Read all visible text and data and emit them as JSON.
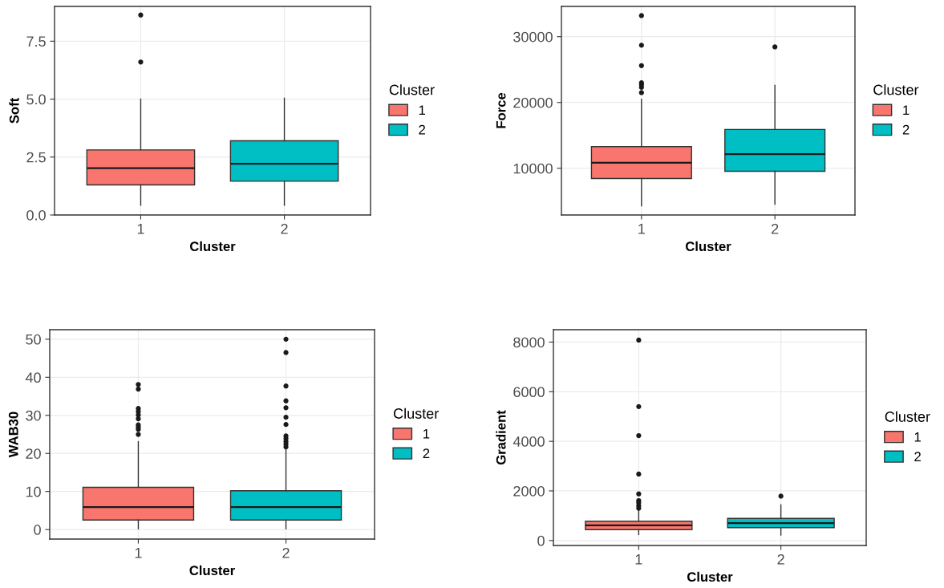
{
  "chart_data": [
    {
      "type": "box",
      "xlabel": "Cluster",
      "ylabel": "Soft",
      "legend_title": "Cluster",
      "legend": "right",
      "grid": true,
      "categories": [
        "1",
        "2"
      ],
      "ylim": [
        0,
        9.0
      ],
      "yticks": [
        {
          "value": 0,
          "label": "0.0"
        },
        2.5,
        {
          "value": 5,
          "label": "5.0"
        },
        7.5
      ],
      "series": [
        {
          "name": "1",
          "color": "#f8766d",
          "boxes": [
            {
              "low": 0.42,
              "q1": 1.3,
              "median": 2.02,
              "q3": 2.81,
              "high": 5.0,
              "outliers": [
                8.63,
                6.6
              ]
            },
            null
          ]
        },
        {
          "name": "2",
          "color": "#00bfc4",
          "boxes": [
            null,
            {
              "low": 0.42,
              "q1": 1.46,
              "median": 2.21,
              "q3": 3.2,
              "high": 5.04
            }
          ]
        }
      ]
    },
    {
      "type": "box",
      "xlabel": "Cluster",
      "ylabel": "Force",
      "legend_title": "Cluster",
      "legend": "right",
      "grid": true,
      "categories": [
        "1",
        "2"
      ],
      "ylim": [
        2900,
        34600
      ],
      "yticks": [
        10000,
        20000,
        30000
      ],
      "series": [
        {
          "name": "1",
          "color": "#f8766d",
          "boxes": [
            {
              "low": 4300,
              "q1": 8450,
              "median": 10850,
              "q3": 13300,
              "high": 20500,
              "outliers": [
                33200,
                28700,
                25600,
                23000,
                22700,
                22300,
                21500
              ]
            },
            null
          ]
        },
        {
          "name": "2",
          "color": "#00bfc4",
          "boxes": [
            null,
            {
              "low": 4550,
              "q1": 9550,
              "median": 12150,
              "q3": 15900,
              "high": 22600,
              "outliers": [
                28450
              ]
            }
          ]
        }
      ]
    },
    {
      "type": "box",
      "xlabel": "Cluster",
      "ylabel": "WAB30",
      "legend_title": "Cluster",
      "legend": "right",
      "grid": true,
      "categories": [
        "1",
        "2"
      ],
      "ylim": [
        -2.5,
        52.5
      ],
      "yticks": [
        0,
        10,
        20,
        30,
        40,
        50
      ],
      "series": [
        {
          "name": "1",
          "color": "#f8766d",
          "boxes": [
            {
              "low": 0.2,
              "q1": 2.5,
              "median": 5.9,
              "q3": 11.1,
              "high": 23.1,
              "outliers": [
                38.1,
                36.9,
                31.8,
                31.0,
                30.1,
                29.1,
                27.5,
                26.9,
                26.3,
                25.0
              ]
            },
            null
          ]
        },
        {
          "name": "2",
          "color": "#00bfc4",
          "boxes": [
            null,
            {
              "low": 0.2,
              "q1": 2.5,
              "median": 5.9,
              "q3": 10.2,
              "high": 21.0,
              "outliers": [
                50.0,
                46.5,
                37.7,
                33.8,
                32.0,
                29.5,
                27.6,
                24.6,
                23.9,
                23.1,
                22.4,
                21.7
              ]
            }
          ]
        }
      ]
    },
    {
      "type": "box",
      "xlabel": "Cluster",
      "ylabel": "Gradient",
      "legend_title": "Cluster",
      "legend": "right",
      "grid": true,
      "categories": [
        "1",
        "2"
      ],
      "ylim": [
        -200,
        8500
      ],
      "yticks": [
        0,
        2000,
        4000,
        6000,
        8000
      ],
      "series": [
        {
          "name": "1",
          "color": "#f8766d",
          "boxes": [
            {
              "low": 240,
              "q1": 440,
              "median": 610,
              "q3": 780,
              "high": 1200,
              "outliers": [
                8080,
                5400,
                4230,
                2680,
                1880,
                1610,
                1520,
                1400,
                1300
              ]
            },
            null
          ]
        },
        {
          "name": "2",
          "color": "#00bfc4",
          "boxes": [
            null,
            {
              "low": 220,
              "q1": 520,
              "median": 700,
              "q3": 890,
              "high": 1440,
              "outliers": [
                1790
              ]
            }
          ]
        }
      ]
    }
  ]
}
